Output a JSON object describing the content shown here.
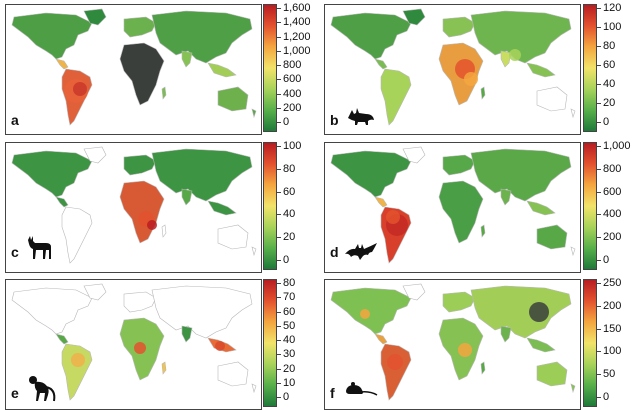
{
  "colors": {
    "scale": [
      "#1f7a3a",
      "#58b04a",
      "#a8d35a",
      "#f2e36a",
      "#f4a640",
      "#e3522e",
      "#b81d22"
    ],
    "outline": "#b8b8b8",
    "mask": "#3b3f3c"
  },
  "panels": [
    {
      "letter": "a",
      "silhouette": "none-icon",
      "ticks": [
        "1,600",
        "1,400",
        "1,200",
        "1,000",
        "800",
        "600",
        "400",
        "200",
        "0"
      ],
      "max": 1600
    },
    {
      "letter": "b",
      "silhouette": "fox-icon",
      "ticks": [
        "120",
        "100",
        "80",
        "60",
        "40",
        "20",
        "0"
      ],
      "max": 120
    },
    {
      "letter": "c",
      "silhouette": "antelope-icon",
      "ticks": [
        "100",
        "80",
        "60",
        "40",
        "20",
        "0"
      ],
      "max": 100
    },
    {
      "letter": "d",
      "silhouette": "bat-icon",
      "ticks": [
        "1,000",
        "800",
        "600",
        "400",
        "200",
        "0"
      ],
      "max": 1000
    },
    {
      "letter": "e",
      "silhouette": "monkey-icon",
      "ticks": [
        "80",
        "70",
        "60",
        "50",
        "40",
        "30",
        "20",
        "10",
        "0"
      ],
      "max": 80
    },
    {
      "letter": "f",
      "silhouette": "rodent-icon",
      "ticks": [
        "250",
        "200",
        "150",
        "100",
        "50",
        "0"
      ],
      "max": 250
    }
  ]
}
